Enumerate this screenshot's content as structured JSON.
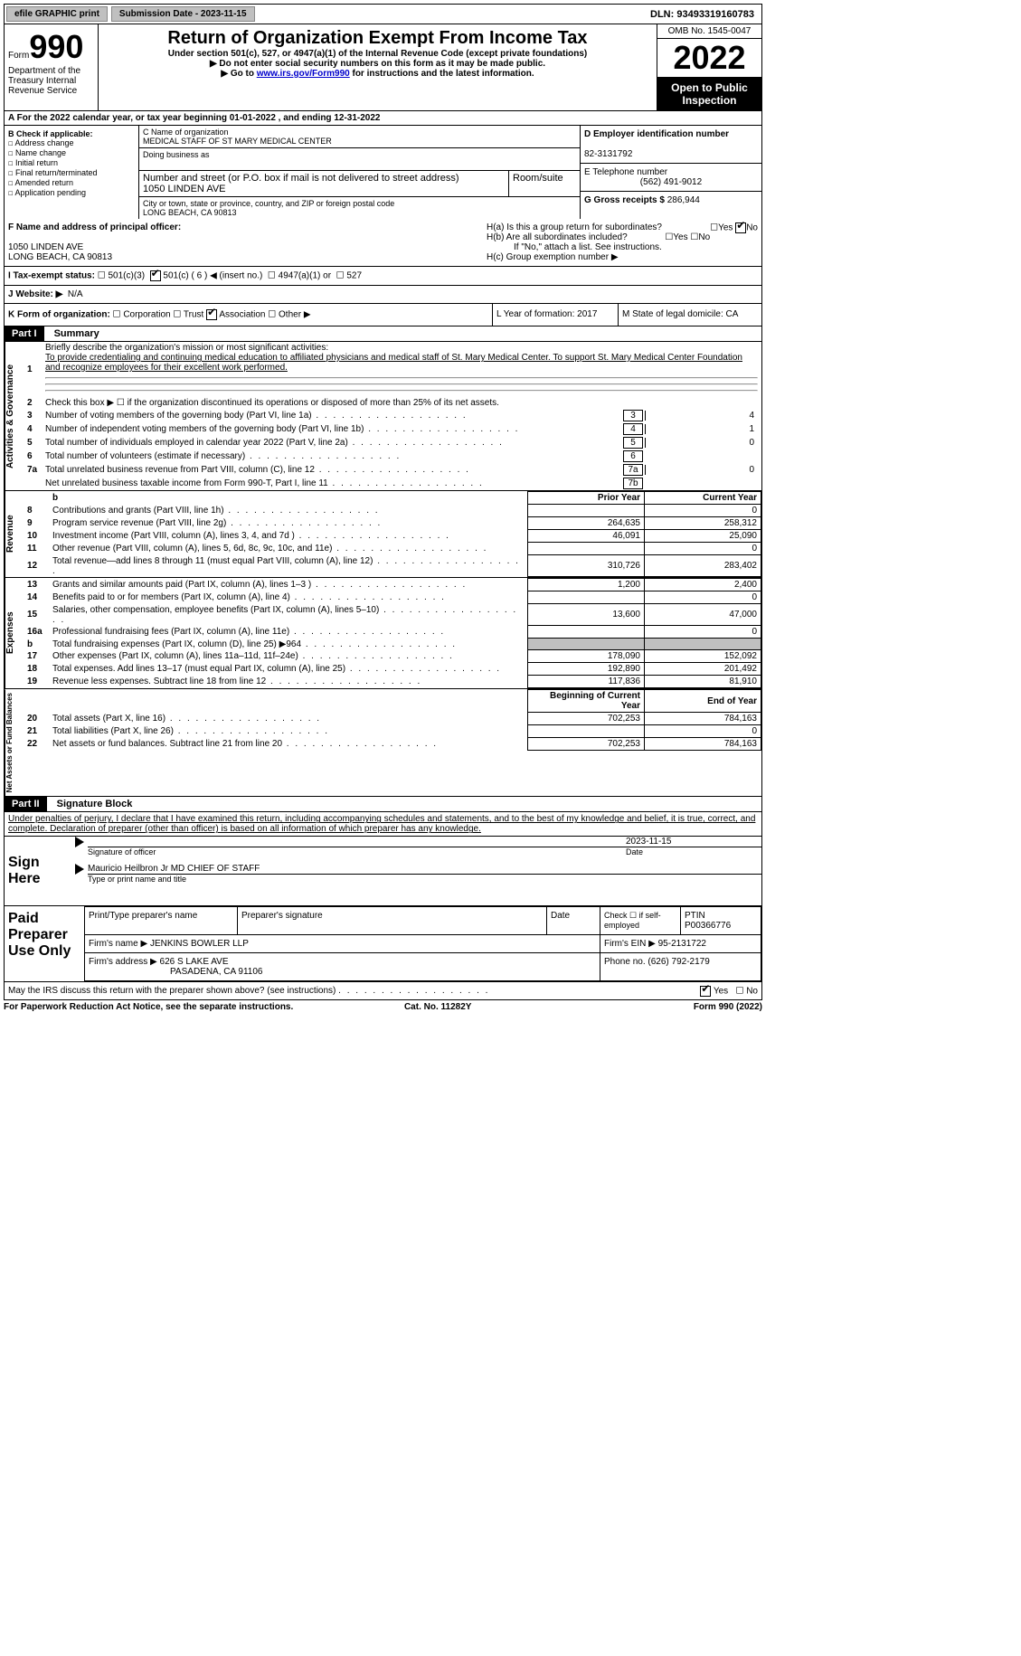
{
  "topbar": {
    "btn1": "efile GRAPHIC print",
    "btn2": "Submission Date - 2023-11-15",
    "dln": "DLN: 93493319160783"
  },
  "header": {
    "form_small": "Form",
    "form_big": "990",
    "dept": "Department of the Treasury Internal Revenue Service",
    "title": "Return of Organization Exempt From Income Tax",
    "sub1": "Under section 501(c), 527, or 4947(a)(1) of the Internal Revenue Code (except private foundations)",
    "sub2": "▶ Do not enter social security numbers on this form as it may be made public.",
    "sub3_pre": "▶ Go to ",
    "sub3_link": "www.irs.gov/Form990",
    "sub3_post": " for instructions and the latest information.",
    "omb": "OMB No. 1545-0047",
    "year": "2022",
    "inspection": "Open to Public Inspection"
  },
  "line_a": "A For the 2022 calendar year, or tax year beginning 01-01-2022    , and ending 12-31-2022",
  "col_b": {
    "title": "B Check if applicable:",
    "opts": [
      "Address change",
      "Name change",
      "Initial return",
      "Final return/terminated",
      "Amended return",
      "Application pending"
    ]
  },
  "col_c": {
    "name_label": "C Name of organization",
    "name": "MEDICAL STAFF OF ST MARY MEDICAL CENTER",
    "dba_label": "Doing business as",
    "addr_label": "Number and street (or P.O. box if mail is not delivered to street address)",
    "room_label": "Room/suite",
    "addr": "1050 LINDEN AVE",
    "city_label": "City or town, state or province, country, and ZIP or foreign postal code",
    "city": "LONG BEACH, CA  90813"
  },
  "col_d": {
    "ein_label": "D Employer identification number",
    "ein": "82-3131792",
    "tel_label": "E Telephone number",
    "tel": "(562) 491-9012",
    "gross_label": "G Gross receipts $",
    "gross": "286,944"
  },
  "section_f": {
    "label": "F Name and address of principal officer:",
    "addr1": "1050 LINDEN AVE",
    "addr2": "LONG BEACH, CA  90813"
  },
  "section_h": {
    "ha": "H(a)  Is this a group return for subordinates?",
    "hb": "H(b)  Are all subordinates included?",
    "hb_note": "If \"No,\" attach a list. See instructions.",
    "hc": "H(c)  Group exemption number ▶"
  },
  "section_i": {
    "label": "I   Tax-exempt status:",
    "opts": [
      "501(c)(3)",
      "501(c) ( 6 ) ◀ (insert no.)",
      "4947(a)(1) or",
      "527"
    ]
  },
  "section_j": {
    "label": "J   Website: ▶",
    "val": "N/A"
  },
  "section_k": {
    "label": "K Form of organization:",
    "opts": [
      "Corporation",
      "Trust",
      "Association",
      "Other ▶"
    ],
    "l": "L Year of formation: 2017",
    "m": "M State of legal domicile: CA"
  },
  "part1": {
    "hdr": "Part I",
    "title": "Summary",
    "line1_label": "Briefly describe the organization's mission or most significant activities:",
    "mission": "To provide credentialing and continuing medical education to affiliated physicians and medical staff of St. Mary Medical Center. To support St. Mary Medical Center Foundation and recognize employees for their excellent work performed.",
    "line2": "Check this box ▶ ☐ if the organization discontinued its operations or disposed of more than 25% of its net assets.",
    "rows": [
      {
        "n": "3",
        "t": "Number of voting members of the governing body (Part VI, line 1a)",
        "b": "3",
        "v": "4"
      },
      {
        "n": "4",
        "t": "Number of independent voting members of the governing body (Part VI, line 1b)",
        "b": "4",
        "v": "1"
      },
      {
        "n": "5",
        "t": "Total number of individuals employed in calendar year 2022 (Part V, line 2a)",
        "b": "5",
        "v": "0"
      },
      {
        "n": "6",
        "t": "Total number of volunteers (estimate if necessary)",
        "b": "6",
        "v": ""
      },
      {
        "n": "7a",
        "t": "Total unrelated business revenue from Part VIII, column (C), line 12",
        "b": "7a",
        "v": "0"
      },
      {
        "n": "",
        "t": "Net unrelated business taxable income from Form 990-T, Part I, line 11",
        "b": "7b",
        "v": ""
      }
    ]
  },
  "fin": {
    "hdr_prior": "Prior Year",
    "hdr_curr": "Current Year",
    "revenue": [
      {
        "n": "8",
        "t": "Contributions and grants (Part VIII, line 1h)",
        "p": "",
        "c": "0"
      },
      {
        "n": "9",
        "t": "Program service revenue (Part VIII, line 2g)",
        "p": "264,635",
        "c": "258,312"
      },
      {
        "n": "10",
        "t": "Investment income (Part VIII, column (A), lines 3, 4, and 7d )",
        "p": "46,091",
        "c": "25,090"
      },
      {
        "n": "11",
        "t": "Other revenue (Part VIII, column (A), lines 5, 6d, 8c, 9c, 10c, and 11e)",
        "p": "",
        "c": "0"
      },
      {
        "n": "12",
        "t": "Total revenue—add lines 8 through 11 (must equal Part VIII, column (A), line 12)",
        "p": "310,726",
        "c": "283,402"
      }
    ],
    "expenses": [
      {
        "n": "13",
        "t": "Grants and similar amounts paid (Part IX, column (A), lines 1–3 )",
        "p": "1,200",
        "c": "2,400"
      },
      {
        "n": "14",
        "t": "Benefits paid to or for members (Part IX, column (A), line 4)",
        "p": "",
        "c": "0"
      },
      {
        "n": "15",
        "t": "Salaries, other compensation, employee benefits (Part IX, column (A), lines 5–10)",
        "p": "13,600",
        "c": "47,000"
      },
      {
        "n": "16a",
        "t": "Professional fundraising fees (Part IX, column (A), line 11e)",
        "p": "",
        "c": "0"
      },
      {
        "n": "b",
        "t": "Total fundraising expenses (Part IX, column (D), line 25) ▶964",
        "p": "shaded",
        "c": "shaded"
      },
      {
        "n": "17",
        "t": "Other expenses (Part IX, column (A), lines 11a–11d, 11f–24e)",
        "p": "178,090",
        "c": "152,092"
      },
      {
        "n": "18",
        "t": "Total expenses. Add lines 13–17 (must equal Part IX, column (A), line 25)",
        "p": "192,890",
        "c": "201,492"
      },
      {
        "n": "19",
        "t": "Revenue less expenses. Subtract line 18 from line 12",
        "p": "117,836",
        "c": "81,910"
      }
    ],
    "hdr_begin": "Beginning of Current Year",
    "hdr_end": "End of Year",
    "netassets": [
      {
        "n": "20",
        "t": "Total assets (Part X, line 16)",
        "p": "702,253",
        "c": "784,163"
      },
      {
        "n": "21",
        "t": "Total liabilities (Part X, line 26)",
        "p": "",
        "c": "0"
      },
      {
        "n": "22",
        "t": "Net assets or fund balances. Subtract line 21 from line 20",
        "p": "702,253",
        "c": "784,163"
      }
    ]
  },
  "part2": {
    "hdr": "Part II",
    "title": "Signature Block",
    "decl": "Under penalties of perjury, I declare that I have examined this return, including accompanying schedules and statements, and to the best of my knowledge and belief, it is true, correct, and complete. Declaration of preparer (other than officer) is based on all information of which preparer has any knowledge."
  },
  "sign": {
    "left": "Sign Here",
    "sig_label": "Signature of officer",
    "date": "2023-11-15",
    "date_label": "Date",
    "name": "Mauricio Heilbron Jr MD CHIEF OF STAFF",
    "name_label": "Type or print name and title"
  },
  "prep": {
    "left": "Paid Preparer Use Only",
    "r1c1": "Print/Type preparer's name",
    "r1c2": "Preparer's signature",
    "r1c3": "Date",
    "r1c4_a": "Check ☐ if self-employed",
    "r1c5_a": "PTIN",
    "r1c5_b": "P00366776",
    "r2c1": "Firm's name    ▶",
    "r2c1_v": "JENKINS BOWLER LLP",
    "r2c2": "Firm's EIN ▶",
    "r2c2_v": "95-2131722",
    "r3c1": "Firm's address ▶",
    "r3c1_v": "626 S LAKE AVE",
    "r3c1_v2": "PASADENA, CA  91106",
    "r3c2": "Phone no.",
    "r3c2_v": "(626) 792-2179"
  },
  "discuss": "May the IRS discuss this return with the preparer shown above? (see instructions)",
  "footer": {
    "left": "For Paperwork Reduction Act Notice, see the separate instructions.",
    "mid": "Cat. No. 11282Y",
    "right": "Form 990 (2022)"
  }
}
